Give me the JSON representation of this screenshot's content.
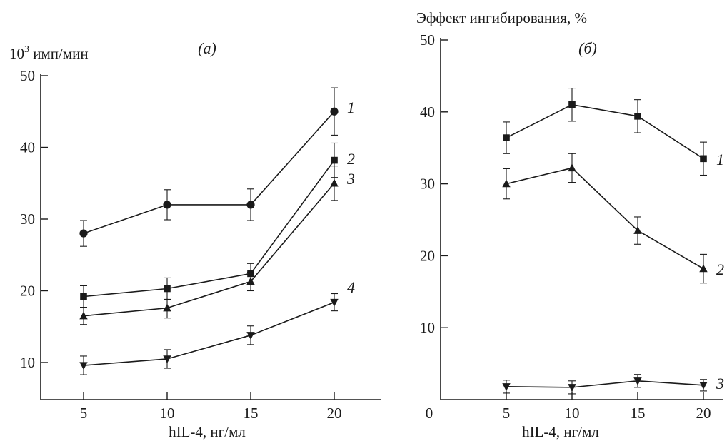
{
  "chart_data": [
    {
      "type": "line",
      "panel_label": "(a)",
      "ylabel_parts": {
        "base": "10",
        "exp": "3",
        "unit": " имп/мин"
      },
      "xlabel": "hIL-4, нг/мл",
      "x": [
        5,
        10,
        15,
        20
      ],
      "xlim": [
        0,
        24
      ],
      "ylim": [
        5,
        50
      ],
      "x_ticks": [
        "5",
        "10",
        "15",
        "20"
      ],
      "y_ticks": [
        "10",
        "20",
        "30",
        "40",
        "50"
      ],
      "grid": false,
      "series": [
        {
          "name": "1",
          "marker": "circle",
          "values": [
            28,
            32,
            32,
            45
          ],
          "err": [
            1.8,
            2.1,
            2.2,
            3.3
          ]
        },
        {
          "name": "2",
          "marker": "square",
          "values": [
            19.2,
            20.3,
            22.4,
            38.2
          ],
          "err": [
            1.5,
            1.5,
            1.4,
            2.4
          ]
        },
        {
          "name": "3",
          "marker": "triangle-up",
          "values": [
            16.5,
            17.6,
            21.3,
            35
          ],
          "err": [
            1.2,
            1.4,
            1.3,
            2.4
          ]
        },
        {
          "name": "4",
          "marker": "triangle-down",
          "values": [
            9.6,
            10.5,
            13.8,
            18.4
          ],
          "err": [
            1.3,
            1.3,
            1.3,
            1.2
          ]
        }
      ]
    },
    {
      "type": "line",
      "panel_label": "(б)",
      "ylabel": "Эффект ингибирования, %",
      "xlabel": "hIL-4, нг/мл",
      "x": [
        5,
        10,
        15,
        20
      ],
      "xlim": [
        0,
        24
      ],
      "ylim": [
        0,
        50
      ],
      "x_ticks": [
        "0",
        "5",
        "10",
        "15",
        "20"
      ],
      "y_ticks": [
        "10",
        "20",
        "30",
        "40",
        "50"
      ],
      "grid": false,
      "series": [
        {
          "name": "1",
          "marker": "square",
          "values": [
            36.4,
            41,
            39.4,
            33.5
          ],
          "err": [
            2.2,
            2.3,
            2.3,
            2.3
          ]
        },
        {
          "name": "2",
          "marker": "triangle-up",
          "values": [
            30,
            32.2,
            23.5,
            18.2
          ],
          "err": [
            2.1,
            2.0,
            1.9,
            2.0
          ]
        },
        {
          "name": "3",
          "marker": "triangle-down",
          "values": [
            1.8,
            1.7,
            2.6,
            2.0
          ],
          "err": [
            0.9,
            0.9,
            0.9,
            0.8
          ]
        }
      ]
    }
  ]
}
